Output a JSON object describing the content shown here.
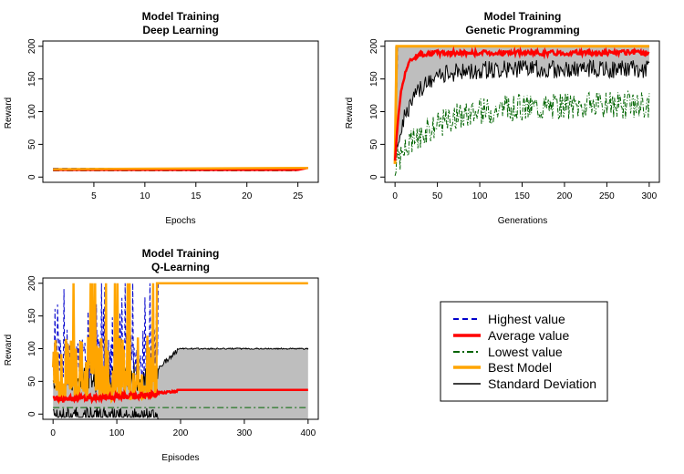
{
  "colors": {
    "highest": "#0000cc",
    "average": "#ff0000",
    "lowest": "#006400",
    "best": "#ffa500",
    "sd": "#000000",
    "band": "#bebebe"
  },
  "legend": {
    "placement": "bottom-right",
    "entries": [
      {
        "label": "Highest value",
        "color": "#0000cc",
        "style": "dashed"
      },
      {
        "label": "Average value",
        "color": "#ff0000",
        "style": "solid-thick"
      },
      {
        "label": "Lowest value",
        "color": "#006400",
        "style": "dashdot"
      },
      {
        "label": "Best Model",
        "color": "#ffa500",
        "style": "solid-thick"
      },
      {
        "label": "Standard Deviation",
        "color": "#000000",
        "style": "solid"
      }
    ]
  },
  "chart_data": [
    {
      "type": "line",
      "title": "Model Training",
      "subtitle": "Deep Learning",
      "xlabel": "Epochs",
      "ylabel": "Reward",
      "xlim": [
        1,
        26
      ],
      "ylim": [
        0,
        200
      ],
      "xticks": [
        5,
        10,
        15,
        20,
        25
      ],
      "yticks": [
        0,
        50,
        100,
        150,
        200
      ],
      "series": [
        {
          "role": "highest",
          "x": [
            1,
            25
          ],
          "values": [
            13,
            13
          ]
        },
        {
          "role": "average",
          "x": [
            1,
            25,
            26
          ],
          "values": [
            11,
            11,
            14
          ]
        },
        {
          "role": "lowest",
          "x": [
            1,
            25
          ],
          "values": [
            10,
            10
          ]
        },
        {
          "role": "best",
          "x": [
            1,
            26
          ],
          "values": [
            12,
            14
          ]
        }
      ]
    },
    {
      "type": "line",
      "title": "Model Training",
      "subtitle": "Genetic Programming",
      "xlabel": "Generations",
      "ylabel": "Reward",
      "xlim": [
        0,
        300
      ],
      "ylim": [
        0,
        200
      ],
      "xticks": [
        0,
        50,
        100,
        150,
        200,
        250,
        300
      ],
      "yticks": [
        0,
        50,
        100,
        150,
        200
      ],
      "series_trends": {
        "average": {
          "start": 22,
          "plateau": 190
        },
        "lowest": {
          "start": 20,
          "plateau": 110
        },
        "sd_lower": {
          "start": 40,
          "plateau": 165
        },
        "highest": 200,
        "best": 200
      }
    },
    {
      "type": "line",
      "title": "Model Training",
      "subtitle": "Q-Learning",
      "xlabel": "Episodes",
      "ylabel": "Reward",
      "xlim": [
        0,
        400
      ],
      "ylim": [
        0,
        200
      ],
      "xticks": [
        0,
        100,
        200,
        300,
        400
      ],
      "yticks": [
        0,
        50,
        100,
        150,
        200
      ],
      "series_trends": {
        "average_early": 22,
        "average_late": 37,
        "lowest": 10,
        "sd_upper_late": 100,
        "best_late": 200,
        "converge_episode": 165
      }
    }
  ]
}
